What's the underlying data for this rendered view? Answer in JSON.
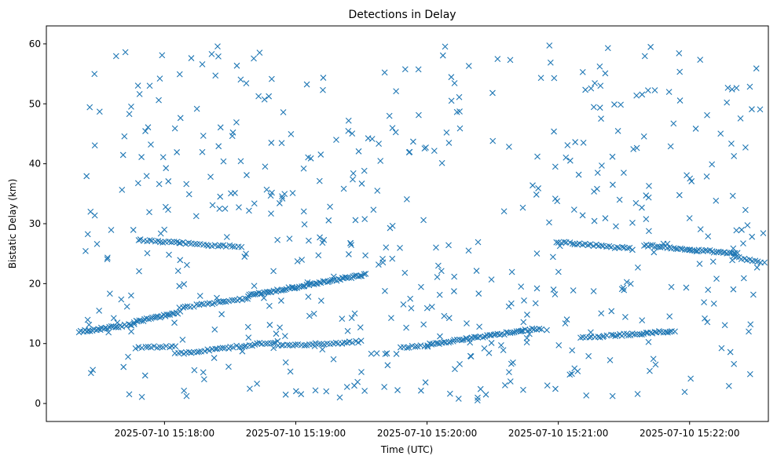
{
  "chart_data": {
    "type": "scatter",
    "title": "Detections in Delay",
    "xlabel": "Time (UTC)",
    "ylabel": "Bistatic Delay (km)",
    "marker": "x",
    "color": "#1f77b4",
    "x_unit": "seconds since 2025-07-10 15:17:00 UTC",
    "xlim": [
      6,
      336
    ],
    "ylim": [
      -3,
      63
    ],
    "x_ticks": [
      {
        "value": 60,
        "label": "2025-07-10 15:18:00"
      },
      {
        "value": 120,
        "label": "2025-07-10 15:19:00"
      },
      {
        "value": 180,
        "label": "2025-07-10 15:20:00"
      },
      {
        "value": 240,
        "label": "2025-07-10 15:21:00"
      },
      {
        "value": 300,
        "label": "2025-07-10 15:22:00"
      }
    ],
    "y_ticks": [
      {
        "value": 0,
        "label": "0"
      },
      {
        "value": 10,
        "label": "10"
      },
      {
        "value": 20,
        "label": "20"
      },
      {
        "value": 30,
        "label": "30"
      },
      {
        "value": 40,
        "label": "40"
      },
      {
        "value": 50,
        "label": "50"
      },
      {
        "value": 60,
        "label": "60"
      }
    ],
    "track_segments": [
      {
        "name": "track-a-lower",
        "x0": 21,
        "y0": 12.0,
        "x1": 46,
        "y1": 13.2,
        "count": 30
      },
      {
        "name": "track-a-mid",
        "x0": 46,
        "y0": 13.6,
        "x1": 67,
        "y1": 15.2,
        "count": 26
      },
      {
        "name": "track-a-upper",
        "x0": 67,
        "y0": 16.0,
        "x1": 98,
        "y1": 17.5,
        "count": 26
      },
      {
        "name": "track-a-rise",
        "x0": 98,
        "y0": 18.0,
        "x1": 152,
        "y1": 21.5,
        "count": 65
      },
      {
        "name": "track-b-early",
        "x0": 47,
        "y0": 9.3,
        "x1": 65,
        "y1": 9.5,
        "count": 14
      },
      {
        "name": "track-b-mid",
        "x0": 65,
        "y0": 8.3,
        "x1": 112,
        "y1": 10.3,
        "count": 40
      },
      {
        "name": "track-b-late",
        "x0": 112,
        "y0": 9.6,
        "x1": 150,
        "y1": 10.3,
        "count": 30
      },
      {
        "name": "track-c-start",
        "x0": 168,
        "y0": 9.4,
        "x1": 180,
        "y1": 9.6,
        "count": 10
      },
      {
        "name": "track-c-rise",
        "x0": 180,
        "y0": 9.8,
        "x1": 223,
        "y1": 12.1,
        "count": 45
      },
      {
        "name": "track-c-end",
        "x0": 223,
        "y0": 12.2,
        "x1": 232,
        "y1": 12.5,
        "count": 10
      },
      {
        "name": "track-d-early",
        "x0": 48,
        "y0": 27.3,
        "x1": 67,
        "y1": 26.8,
        "count": 16
      },
      {
        "name": "track-d-mid",
        "x0": 67,
        "y0": 26.8,
        "x1": 95,
        "y1": 26.1,
        "count": 22
      },
      {
        "name": "track-e-early",
        "x0": 239,
        "y0": 27.0,
        "x1": 274,
        "y1": 25.8,
        "count": 30
      },
      {
        "name": "track-e-mid",
        "x0": 279,
        "y0": 26.4,
        "x1": 322,
        "y1": 25.0,
        "count": 45
      },
      {
        "name": "track-e-tail",
        "x0": 320,
        "y0": 24.5,
        "x1": 334,
        "y1": 23.6,
        "count": 12
      },
      {
        "name": "track-f-early",
        "x0": 250,
        "y0": 11.0,
        "x1": 262,
        "y1": 11.2,
        "count": 10
      },
      {
        "name": "track-f-mid",
        "x0": 264,
        "y0": 11.3,
        "x1": 293,
        "y1": 12.1,
        "count": 30
      }
    ],
    "clutter": {
      "description": "approximately uniform scattered false detections",
      "x_range": [
        20,
        334
      ],
      "y_range": [
        0.5,
        59.8
      ],
      "count": 520
    }
  }
}
